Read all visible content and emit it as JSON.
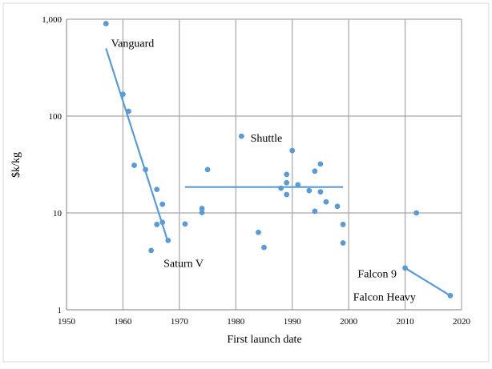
{
  "chart_data": {
    "type": "scatter",
    "xlabel": "First launch date",
    "ylabel": "$k/kg",
    "xlim": [
      1950,
      2020
    ],
    "ylim": [
      1,
      1000
    ],
    "y_scale": "log",
    "grid": true,
    "x_ticks": [
      "1950",
      "1960",
      "1970",
      "1980",
      "1990",
      "2000",
      "2010",
      "2020"
    ],
    "y_ticks": [
      {
        "value": 1,
        "label": "1"
      },
      {
        "value": 10,
        "label": "10"
      },
      {
        "value": 100,
        "label": "100"
      },
      {
        "value": 1000,
        "label": "1,000"
      }
    ],
    "marker_color": "#5b9bd5",
    "line_color": "#5b9bd5",
    "points": [
      {
        "x": 1957,
        "y": 900
      },
      {
        "x": 1960,
        "y": 168
      },
      {
        "x": 1961,
        "y": 112
      },
      {
        "x": 1962,
        "y": 31
      },
      {
        "x": 1964,
        "y": 28
      },
      {
        "x": 1965,
        "y": 4.1
      },
      {
        "x": 1966,
        "y": 17.5
      },
      {
        "x": 1966,
        "y": 7.6
      },
      {
        "x": 1967,
        "y": 12.3
      },
      {
        "x": 1967,
        "y": 8
      },
      {
        "x": 1968,
        "y": 5.2
      },
      {
        "x": 1971,
        "y": 7.7
      },
      {
        "x": 1974,
        "y": 11.1
      },
      {
        "x": 1974,
        "y": 10.1
      },
      {
        "x": 1975,
        "y": 28
      },
      {
        "x": 1981,
        "y": 62
      },
      {
        "x": 1984,
        "y": 6.3
      },
      {
        "x": 1985,
        "y": 4.4
      },
      {
        "x": 1988,
        "y": 18
      },
      {
        "x": 1989,
        "y": 25
      },
      {
        "x": 1989,
        "y": 20.5
      },
      {
        "x": 1989,
        "y": 15.5
      },
      {
        "x": 1990,
        "y": 44
      },
      {
        "x": 1991,
        "y": 19.5
      },
      {
        "x": 1993,
        "y": 17
      },
      {
        "x": 1994,
        "y": 27
      },
      {
        "x": 1994,
        "y": 10.4
      },
      {
        "x": 1995,
        "y": 32
      },
      {
        "x": 1995,
        "y": 16.5
      },
      {
        "x": 1996,
        "y": 13
      },
      {
        "x": 1998,
        "y": 11.7
      },
      {
        "x": 1999,
        "y": 7.6
      },
      {
        "x": 1999,
        "y": 4.9
      },
      {
        "x": 2010,
        "y": 2.7
      },
      {
        "x": 2012,
        "y": 10
      },
      {
        "x": 2018,
        "y": 1.4
      }
    ],
    "trend_lines": [
      {
        "x": [
          1957,
          1968
        ],
        "y": [
          500,
          5
        ]
      },
      {
        "x": [
          1971,
          1999
        ],
        "y": [
          18.5,
          18.5
        ]
      },
      {
        "x": [
          2010,
          2018
        ],
        "y": [
          2.7,
          1.4
        ]
      }
    ],
    "annotations": [
      {
        "text": "Vanguard",
        "x": 1957.9,
        "y": 570
      },
      {
        "text": "Shuttle",
        "x": 1982.6,
        "y": 60
      },
      {
        "text": "Saturn V",
        "x": 1967.2,
        "y": 3.05
      },
      {
        "text": "Falcon 9",
        "x": 2001.6,
        "y": 2.38
      },
      {
        "text": "Falcon Heavy",
        "x": 2000.8,
        "y": 1.37
      }
    ]
  }
}
